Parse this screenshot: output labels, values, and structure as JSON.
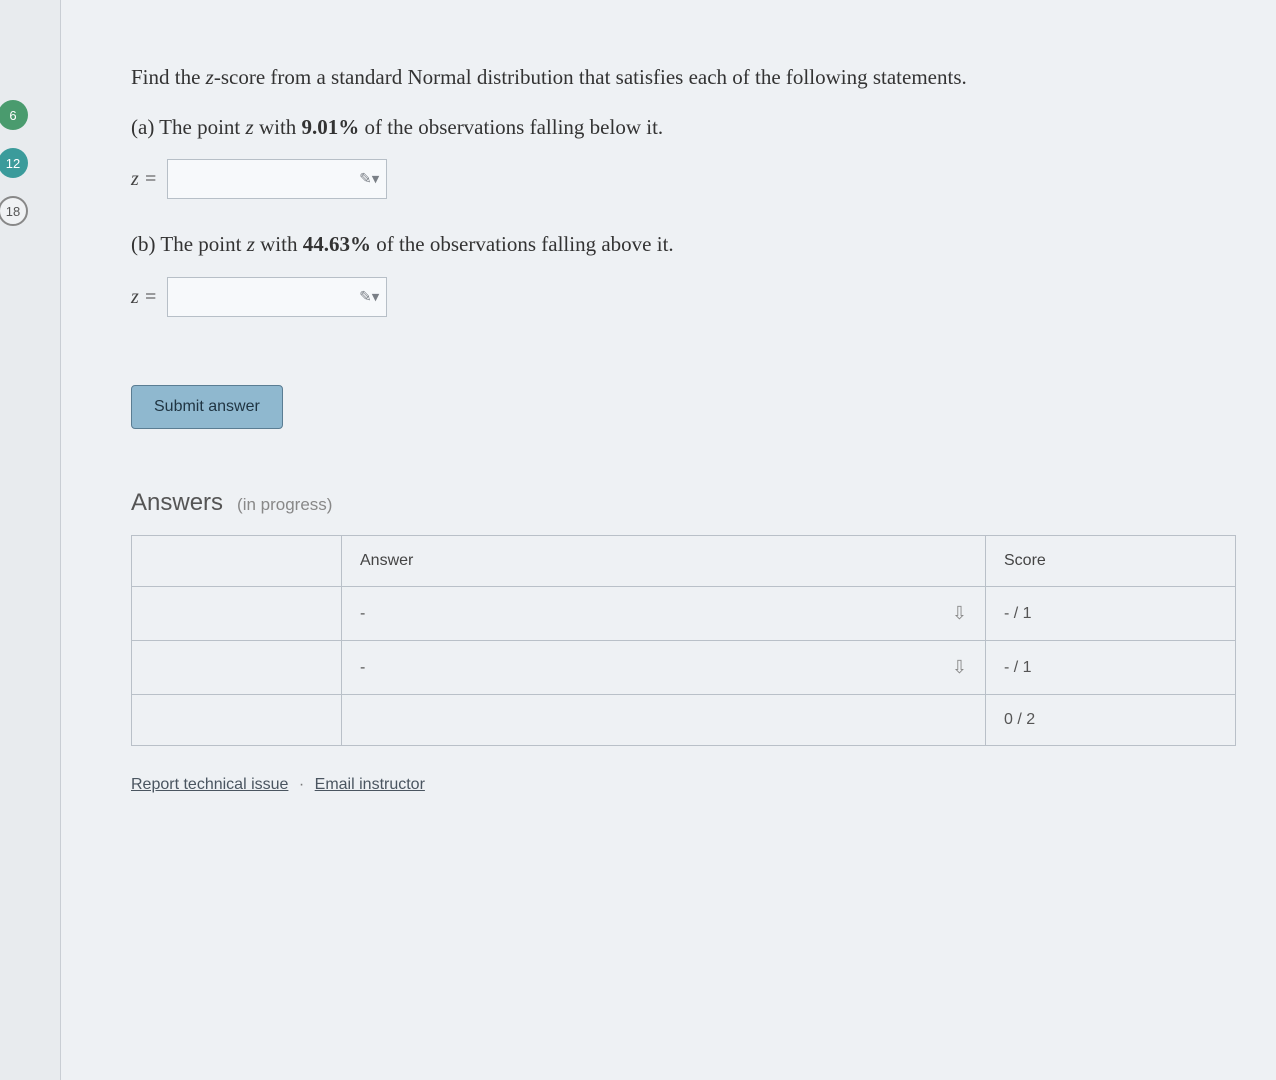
{
  "nav": {
    "items": [
      {
        "label": "6",
        "style": "green"
      },
      {
        "label": "12",
        "style": "teal"
      },
      {
        "label": "18",
        "style": "outline"
      }
    ]
  },
  "question": {
    "intro_pre": "Find the ",
    "intro_var": "z",
    "intro_post": "-score from a standard Normal distribution that satisfies each of the following statements.",
    "parts": [
      {
        "label": "(a)",
        "pre": " The point ",
        "var": "z",
        "mid": " with ",
        "bold": "9.01%",
        "post": " of the observations falling below it.",
        "input_label": "z =",
        "value": ""
      },
      {
        "label": "(b)",
        "pre": " The point ",
        "var": "z",
        "mid": " with ",
        "bold": "44.63%",
        "post": " of the observations falling above it.",
        "input_label": "z =",
        "value": ""
      }
    ]
  },
  "buttons": {
    "submit": "Submit answer"
  },
  "answers": {
    "heading": "Answers",
    "sub": "(in progress)",
    "columns": {
      "blank": "",
      "answer": "Answer",
      "score": "Score"
    },
    "rows": [
      {
        "blank": "",
        "answer": "-",
        "score": "- / 1"
      },
      {
        "blank": "",
        "answer": "-",
        "score": "- / 1"
      }
    ],
    "total": {
      "blank": "",
      "answer": "",
      "score": "0 / 2"
    }
  },
  "footer": {
    "report": "Report technical issue",
    "sep": "·",
    "email": "Email instructor"
  },
  "icons": {
    "pencil": "✎▾",
    "pin": "⇩"
  },
  "colors": {
    "bg": "#e8ebee",
    "panel": "#eef1f4",
    "border": "#b9c0c8",
    "button_bg": "#8fb8cf"
  }
}
